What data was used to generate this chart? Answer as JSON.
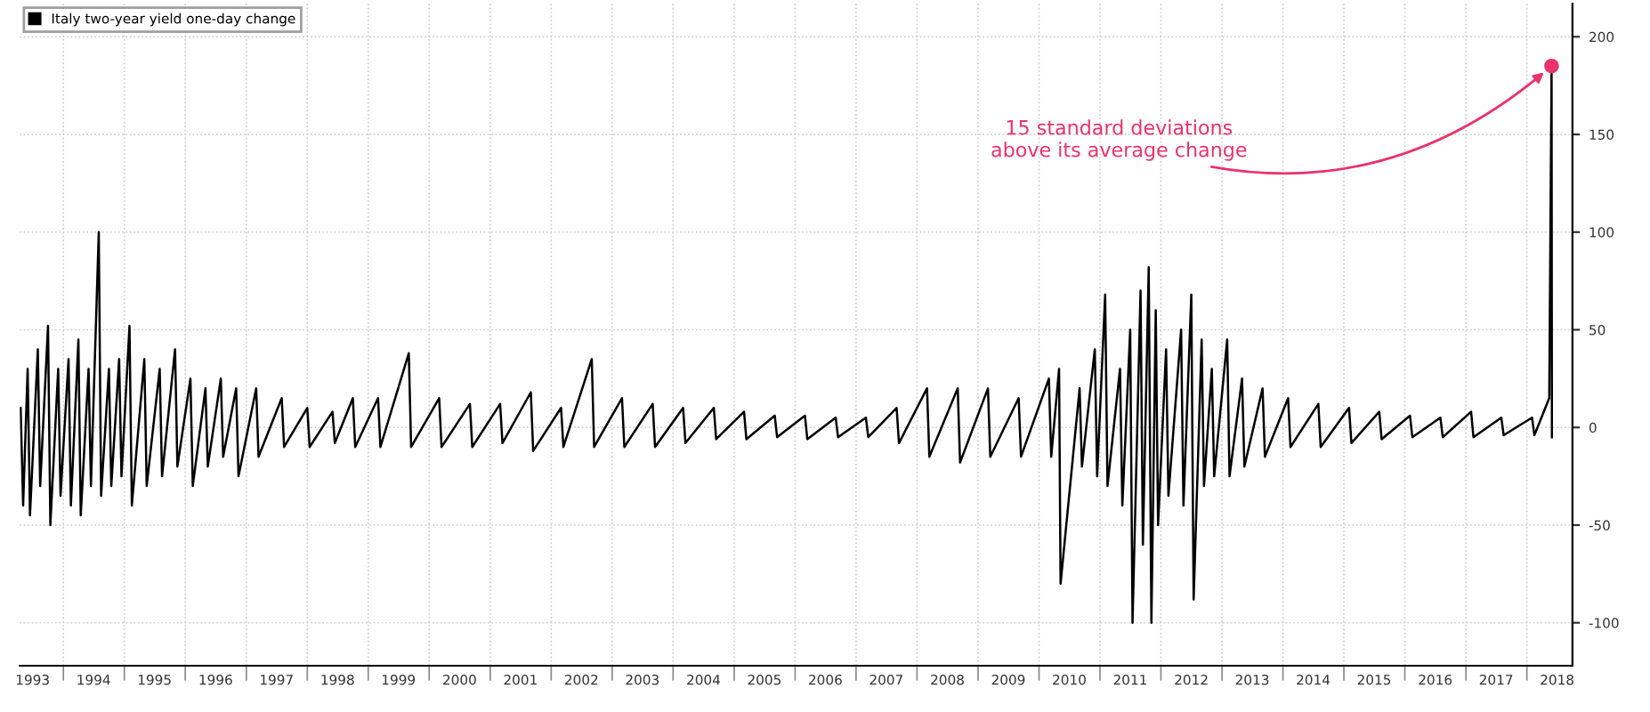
{
  "chart_data": {
    "type": "line",
    "legend": "top left",
    "grid": true,
    "xlim": [
      "1993-04-15",
      "2018-10-01"
    ],
    "ylim": [
      -122,
      217
    ],
    "yticks": [
      -100,
      -50,
      0,
      50,
      100,
      150,
      200
    ],
    "xticks": [
      {
        "value": "1993-07-01",
        "label": "1993"
      },
      {
        "value": "1994-07-01",
        "label": "1994"
      },
      {
        "value": "1995-07-01",
        "label": "1995"
      },
      {
        "value": "1996-07-01",
        "label": "1996"
      },
      {
        "value": "1997-07-01",
        "label": "1997"
      },
      {
        "value": "1998-07-01",
        "label": "1998"
      },
      {
        "value": "1999-07-01",
        "label": "1999"
      },
      {
        "value": "2000-07-01",
        "label": "2000"
      },
      {
        "value": "2001-07-01",
        "label": "2001"
      },
      {
        "value": "2002-07-01",
        "label": "2002"
      },
      {
        "value": "2003-07-01",
        "label": "2003"
      },
      {
        "value": "2004-07-01",
        "label": "2004"
      },
      {
        "value": "2005-07-01",
        "label": "2005"
      },
      {
        "value": "2006-07-01",
        "label": "2006"
      },
      {
        "value": "2007-07-01",
        "label": "2007"
      },
      {
        "value": "2008-07-01",
        "label": "2008"
      },
      {
        "value": "2009-07-01",
        "label": "2009"
      },
      {
        "value": "2010-07-01",
        "label": "2010"
      },
      {
        "value": "2011-07-01",
        "label": "2011"
      },
      {
        "value": "2012-07-01",
        "label": "2012"
      },
      {
        "value": "2013-07-01",
        "label": "2013"
      },
      {
        "value": "2014-07-01",
        "label": "2014"
      },
      {
        "value": "2015-07-01",
        "label": "2015"
      },
      {
        "value": "2016-07-01",
        "label": "2016"
      },
      {
        "value": "2017-07-01",
        "label": "2017"
      },
      {
        "value": "2018-07-01",
        "label": "2018"
      },
      {
        "value": "1994-01-01",
        "label": null
      },
      {
        "value": "1995-01-01",
        "label": null
      },
      {
        "value": "1996-01-01",
        "label": null
      },
      {
        "value": "1997-01-01",
        "label": null
      },
      {
        "value": "1998-01-01",
        "label": null
      },
      {
        "value": "1999-01-01",
        "label": null
      },
      {
        "value": "2000-01-01",
        "label": null
      },
      {
        "value": "2001-01-01",
        "label": null
      },
      {
        "value": "2002-01-01",
        "label": null
      },
      {
        "value": "2003-01-01",
        "label": null
      },
      {
        "value": "2004-01-01",
        "label": null
      },
      {
        "value": "2005-01-01",
        "label": null
      },
      {
        "value": "2006-01-01",
        "label": null
      },
      {
        "value": "2007-01-01",
        "label": null
      },
      {
        "value": "2008-01-01",
        "label": null
      },
      {
        "value": "2009-01-01",
        "label": null
      },
      {
        "value": "2010-01-01",
        "label": null
      },
      {
        "value": "2011-01-01",
        "label": null
      },
      {
        "value": "2012-01-01",
        "label": null
      },
      {
        "value": "2013-01-01",
        "label": null
      },
      {
        "value": "2014-01-01",
        "label": null
      },
      {
        "value": "2015-01-01",
        "label": null
      },
      {
        "value": "2016-01-01",
        "label": null
      },
      {
        "value": "2017-01-01",
        "label": null
      },
      {
        "value": "2018-01-01",
        "label": null
      }
    ],
    "annotations": [
      {
        "text": "15 standard deviations\nabove its average change",
        "x": "2018-05-29",
        "y": 185
      }
    ],
    "series": [
      {
        "name": "Italy two-year yield one-day change",
        "color": "#000000",
        "x": [
          "1993-04-20",
          "1993-05-05",
          "1993-06-01",
          "1993-06-15",
          "1993-08-01",
          "1993-08-15",
          "1993-10-01",
          "1993-10-15",
          "1993-12-01",
          "1993-12-15",
          "1994-02-01",
          "1994-02-15",
          "1994-04-01",
          "1994-04-15",
          "1994-06-01",
          "1994-06-15",
          "1994-08-01",
          "1994-08-15",
          "1994-10-01",
          "1994-10-15",
          "1994-12-01",
          "1994-12-15",
          "1995-02-01",
          "1995-02-15",
          "1995-05-01",
          "1995-05-15",
          "1995-08-01",
          "1995-08-15",
          "1995-11-01",
          "1995-11-15",
          "1996-02-01",
          "1996-02-15",
          "1996-05-01",
          "1996-05-15",
          "1996-08-01",
          "1996-08-15",
          "1996-11-01",
          "1996-11-15",
          "1997-03-01",
          "1997-03-15",
          "1997-08-01",
          "1997-08-15",
          "1998-01-01",
          "1998-01-15",
          "1998-06-01",
          "1998-06-15",
          "1998-10-01",
          "1998-10-15",
          "1999-03-01",
          "1999-03-15",
          "1999-09-01",
          "1999-09-15",
          "2000-03-01",
          "2000-03-15",
          "2000-09-01",
          "2000-09-15",
          "2001-03-01",
          "2001-03-15",
          "2001-09-01",
          "2001-09-15",
          "2002-03-01",
          "2002-03-15",
          "2002-09-01",
          "2002-09-15",
          "2003-03-01",
          "2003-03-15",
          "2003-09-01",
          "2003-09-15",
          "2004-03-01",
          "2004-03-15",
          "2004-09-01",
          "2004-09-15",
          "2005-03-01",
          "2005-03-15",
          "2005-09-01",
          "2005-09-15",
          "2006-03-01",
          "2006-03-15",
          "2006-09-01",
          "2006-09-15",
          "2007-03-01",
          "2007-03-15",
          "2007-09-01",
          "2007-09-15",
          "2008-03-01",
          "2008-03-15",
          "2008-09-01",
          "2008-09-15",
          "2009-03-01",
          "2009-03-15",
          "2009-09-01",
          "2009-09-15",
          "2010-03-01",
          "2010-03-15",
          "2010-05-01",
          "2010-05-10",
          "2010-09-01",
          "2010-09-15",
          "2010-12-01",
          "2010-12-15",
          "2011-02-01",
          "2011-02-15",
          "2011-05-01",
          "2011-05-15",
          "2011-07-01",
          "2011-07-15",
          "2011-09-01",
          "2011-09-15",
          "2011-10-20",
          "2011-11-05",
          "2011-12-01",
          "2011-12-15",
          "2012-02-01",
          "2012-02-15",
          "2012-05-01",
          "2012-05-15",
          "2012-07-01",
          "2012-07-15",
          "2012-09-01",
          "2012-09-15",
          "2012-11-01",
          "2012-11-15",
          "2013-02-01",
          "2013-02-15",
          "2013-05-01",
          "2013-05-15",
          "2013-09-01",
          "2013-09-15",
          "2014-02-01",
          "2014-02-15",
          "2014-08-01",
          "2014-08-15",
          "2015-02-01",
          "2015-02-15",
          "2015-08-01",
          "2015-08-15",
          "2016-02-01",
          "2016-02-15",
          "2016-08-01",
          "2016-08-15",
          "2017-02-01",
          "2017-02-15",
          "2017-08-01",
          "2017-08-15",
          "2018-02-01",
          "2018-02-15",
          "2018-05-15",
          "2018-05-29",
          "2018-05-31"
        ],
        "values": [
          10,
          -40,
          30,
          -45,
          40,
          -30,
          52,
          -50,
          30,
          -35,
          35,
          -40,
          45,
          -45,
          30,
          -30,
          100,
          -35,
          30,
          -30,
          35,
          -25,
          52,
          -40,
          35,
          -30,
          30,
          -25,
          40,
          -20,
          25,
          -30,
          20,
          -20,
          25,
          -15,
          20,
          -25,
          20,
          -15,
          15,
          -10,
          10,
          -10,
          8,
          -8,
          15,
          -10,
          15,
          -10,
          38,
          -10,
          15,
          -10,
          12,
          -10,
          12,
          -8,
          18,
          -12,
          10,
          -10,
          35,
          -10,
          15,
          -10,
          12,
          -10,
          10,
          -8,
          10,
          -6,
          8,
          -6,
          6,
          -5,
          6,
          -6,
          5,
          -5,
          5,
          -5,
          10,
          -8,
          20,
          -15,
          20,
          -18,
          20,
          -15,
          15,
          -15,
          25,
          -15,
          30,
          -80,
          20,
          -20,
          40,
          -25,
          68,
          -30,
          30,
          -40,
          50,
          -100,
          70,
          -60,
          82,
          -100,
          60,
          -50,
          40,
          -35,
          50,
          -40,
          68,
          -88,
          45,
          -30,
          30,
          -25,
          45,
          -25,
          25,
          -20,
          20,
          -15,
          15,
          -10,
          12,
          -10,
          10,
          -8,
          8,
          -6,
          6,
          -5,
          5,
          -5,
          8,
          -5,
          5,
          -4,
          5,
          -4,
          15,
          185,
          -5
        ]
      }
    ]
  }
}
